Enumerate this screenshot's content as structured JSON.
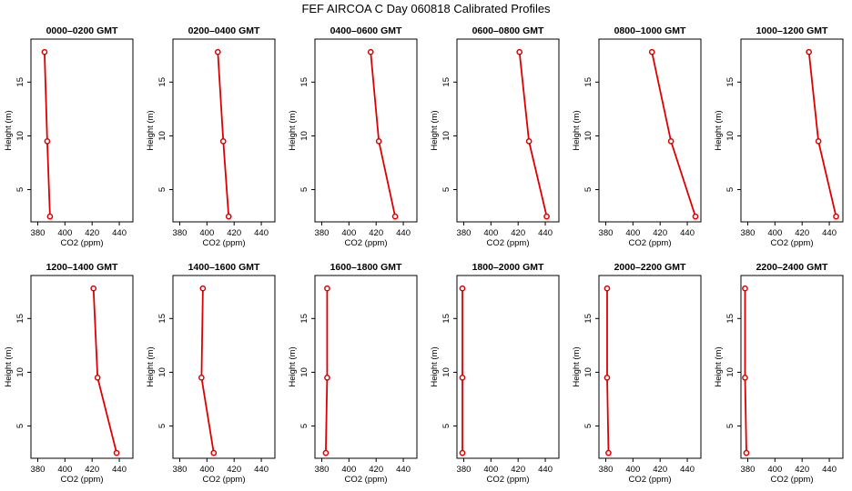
{
  "title": "FEF AIRCOA C  Day 060818  Calibrated Profiles",
  "colors": {
    "series": "#dd0000",
    "axis": "#000000",
    "background": "#ffffff"
  },
  "chart_data": {
    "type": "line",
    "xlabel": "CO2 (ppm)",
    "ylabel": "Height (m)",
    "xlim": [
      375,
      450
    ],
    "ylim": [
      2,
      19
    ],
    "xticks": [
      380,
      400,
      420,
      440
    ],
    "yticks": [
      5,
      10,
      15
    ],
    "grid": false,
    "heights": [
      2.5,
      9.5,
      17.8
    ],
    "panels": [
      {
        "title": "0000–0200 GMT",
        "co2": [
          389,
          387,
          385
        ]
      },
      {
        "title": "0200–0400 GMT",
        "co2": [
          416,
          412,
          408
        ]
      },
      {
        "title": "0400–0600 GMT",
        "co2": [
          434,
          422,
          416
        ]
      },
      {
        "title": "0600–0800 GMT",
        "co2": [
          441,
          428,
          421
        ]
      },
      {
        "title": "0800–1000 GMT",
        "co2": [
          446,
          428,
          414
        ]
      },
      {
        "title": "1000–1200 GMT",
        "co2": [
          445,
          432,
          425
        ]
      },
      {
        "title": "1200–1400 GMT",
        "co2": [
          438,
          424,
          421
        ]
      },
      {
        "title": "1400–1600 GMT",
        "co2": [
          405,
          396,
          397
        ]
      },
      {
        "title": "1600–1800 GMT",
        "co2": [
          383,
          384,
          384
        ]
      },
      {
        "title": "1800–2000 GMT",
        "co2": [
          379,
          379,
          379
        ]
      },
      {
        "title": "2000–2200 GMT",
        "co2": [
          382,
          381,
          381
        ]
      },
      {
        "title": "2200–2400 GMT",
        "co2": [
          379,
          378,
          378
        ]
      }
    ]
  }
}
